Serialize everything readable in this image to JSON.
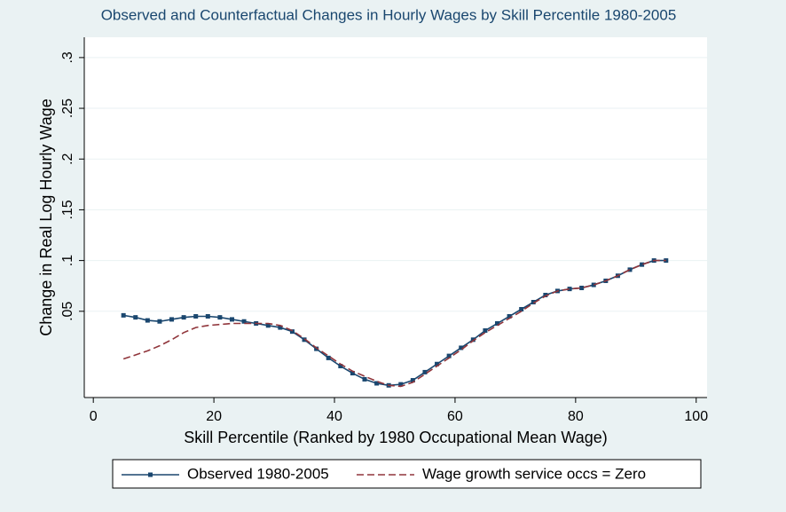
{
  "chart_data": {
    "type": "line",
    "title": "Observed and Counterfactual Changes in Hourly Wages by Skill Percentile 1980-2005",
    "x_label": "Skill Percentile (Ranked by 1980 Occupational Mean Wage)",
    "y_label": "Change in Real Log Hourly Wage",
    "x": [
      5,
      7,
      9,
      11,
      13,
      15,
      17,
      19,
      21,
      23,
      25,
      27,
      29,
      31,
      33,
      35,
      37,
      39,
      41,
      43,
      45,
      47,
      49,
      51,
      53,
      55,
      57,
      59,
      61,
      63,
      65,
      67,
      69,
      71,
      73,
      75,
      77,
      79,
      81,
      83,
      85,
      87,
      89,
      91,
      93,
      95
    ],
    "series": [
      {
        "name": "Observed 1980-2005",
        "color": "#1a476f",
        "style": "solid",
        "markers": true,
        "values": [
          0.046,
          0.044,
          0.041,
          0.04,
          0.042,
          0.044,
          0.045,
          0.045,
          0.044,
          0.042,
          0.04,
          0.038,
          0.036,
          0.034,
          0.03,
          0.022,
          0.013,
          0.004,
          -0.004,
          -0.011,
          -0.017,
          -0.021,
          -0.023,
          -0.022,
          -0.018,
          -0.01,
          -0.002,
          0.006,
          0.014,
          0.022,
          0.031,
          0.038,
          0.045,
          0.052,
          0.059,
          0.066,
          0.07,
          0.072,
          0.073,
          0.076,
          0.08,
          0.085,
          0.091,
          0.096,
          0.1,
          0.1
        ]
      },
      {
        "name": "Wage growth service occs = Zero",
        "color": "#90353b",
        "style": "dashed",
        "markers": false,
        "values": [
          0.003,
          0.007,
          0.011,
          0.016,
          0.022,
          0.029,
          0.034,
          0.036,
          0.037,
          0.038,
          0.038,
          0.038,
          0.038,
          0.036,
          0.031,
          0.023,
          0.014,
          0.006,
          -0.002,
          -0.009,
          -0.014,
          -0.019,
          -0.023,
          -0.024,
          -0.02,
          -0.012,
          -0.004,
          0.004,
          0.012,
          0.021,
          0.029,
          0.036,
          0.043,
          0.05,
          0.058,
          0.065,
          0.07,
          0.072,
          0.073,
          0.076,
          0.08,
          0.085,
          0.091,
          0.096,
          0.1,
          0.1
        ]
      }
    ],
    "xlim": [
      -1.5,
      101.8
    ],
    "ylim": [
      -0.035,
      0.32
    ],
    "xticks": [
      0,
      20,
      40,
      60,
      80,
      100
    ],
    "yticks": [
      {
        "value": 0.05,
        "label": ".05"
      },
      {
        "value": 0.1,
        "label": ".1"
      },
      {
        "value": 0.15,
        "label": ".15"
      },
      {
        "value": 0.2,
        "label": ".2"
      },
      {
        "value": 0.25,
        "label": ".25"
      },
      {
        "value": 0.3,
        "label": ".3"
      }
    ],
    "grid": true,
    "legend": "bottom"
  }
}
